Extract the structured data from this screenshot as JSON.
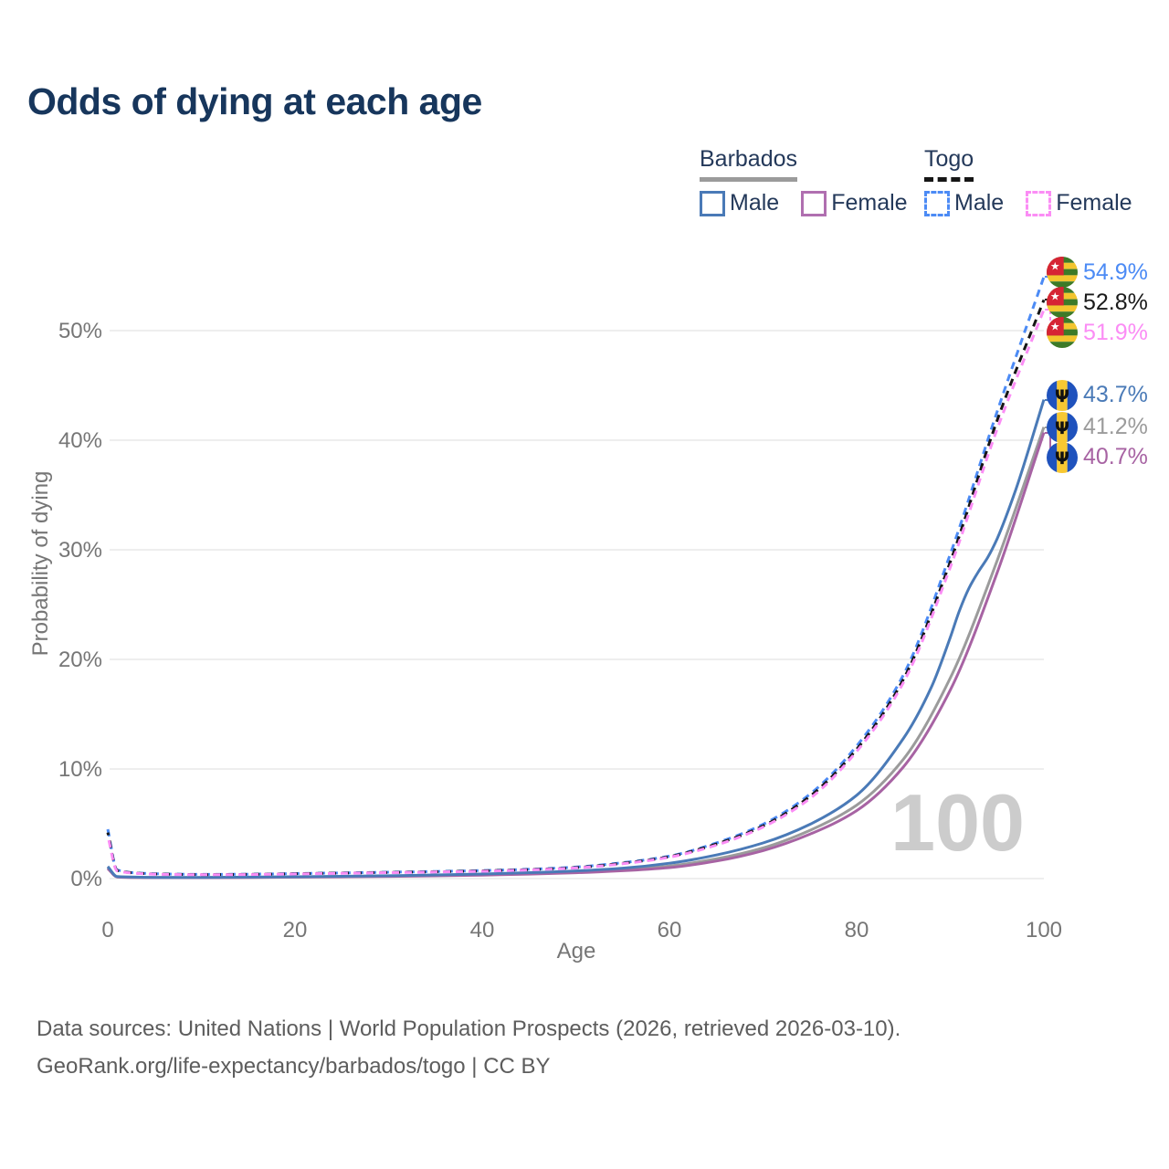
{
  "title": "Odds of dying at each age",
  "legend": {
    "groups": [
      {
        "label": "Barbados",
        "line_style": "solid",
        "entries": [
          {
            "label": "Male",
            "color": "#4a7ab7"
          },
          {
            "label": "Female",
            "color": "#b06fb0"
          }
        ]
      },
      {
        "label": "Togo",
        "line_style": "dashed",
        "entries": [
          {
            "label": "Male",
            "color": "#4c8bf5"
          },
          {
            "label": "Female",
            "color": "#fb8df5"
          }
        ]
      }
    ]
  },
  "axes": {
    "x": {
      "title": "Age",
      "ticks": [
        "0",
        "20",
        "40",
        "60",
        "80",
        "100"
      ],
      "tick_values": [
        0,
        20,
        40,
        60,
        80,
        100
      ],
      "range": [
        0,
        100
      ]
    },
    "y": {
      "title": "Probability of dying",
      "ticks": [
        "0%",
        "10%",
        "20%",
        "30%",
        "40%",
        "50%"
      ],
      "tick_values": [
        0,
        10,
        20,
        30,
        40,
        50
      ],
      "range": [
        0,
        57
      ]
    }
  },
  "watermark_age": "100",
  "chart_data": {
    "type": "line",
    "title": "Odds of dying at each age",
    "xlabel": "Age",
    "ylabel": "Probability of dying",
    "xlim": [
      0,
      100
    ],
    "ylim": [
      0,
      57
    ],
    "grid": "horizontal",
    "legend_position": "top-right",
    "series": [
      {
        "name": "Togo male",
        "country": "Togo",
        "sex": "male",
        "color": "#4c8bf5",
        "dash": true,
        "flag": "togo",
        "end_label": "54.9%",
        "points": [
          [
            0,
            4.5
          ],
          [
            1,
            0.78
          ],
          [
            3,
            0.52
          ],
          [
            5,
            0.44
          ],
          [
            10,
            0.38
          ],
          [
            15,
            0.4
          ],
          [
            20,
            0.46
          ],
          [
            25,
            0.52
          ],
          [
            30,
            0.58
          ],
          [
            35,
            0.65
          ],
          [
            40,
            0.73
          ],
          [
            45,
            0.85
          ],
          [
            50,
            1.05
          ],
          [
            55,
            1.45
          ],
          [
            60,
            2.05
          ],
          [
            65,
            3.25
          ],
          [
            70,
            4.95
          ],
          [
            75,
            7.7
          ],
          [
            80,
            12.1
          ],
          [
            85,
            18.6
          ],
          [
            90,
            29.6
          ],
          [
            95,
            42.6
          ],
          [
            100,
            54.9
          ]
        ]
      },
      {
        "name": "Togo both sexes",
        "country": "Togo",
        "sex": "both",
        "color": "#161616",
        "dash": true,
        "flag": "togo",
        "end_label": "52.8%",
        "points": [
          [
            0,
            4.2
          ],
          [
            1,
            0.74
          ],
          [
            3,
            0.5
          ],
          [
            5,
            0.42
          ],
          [
            10,
            0.36
          ],
          [
            15,
            0.38
          ],
          [
            20,
            0.44
          ],
          [
            25,
            0.5
          ],
          [
            30,
            0.56
          ],
          [
            35,
            0.62
          ],
          [
            40,
            0.7
          ],
          [
            45,
            0.82
          ],
          [
            50,
            1.0
          ],
          [
            55,
            1.4
          ],
          [
            60,
            2.0
          ],
          [
            65,
            3.15
          ],
          [
            70,
            4.8
          ],
          [
            75,
            7.5
          ],
          [
            80,
            11.8
          ],
          [
            85,
            18.2
          ],
          [
            90,
            28.9
          ],
          [
            95,
            41.8
          ],
          [
            100,
            52.8
          ]
        ]
      },
      {
        "name": "Togo female",
        "country": "Togo",
        "sex": "female",
        "color": "#fb8df5",
        "dash": true,
        "flag": "togo",
        "end_label": "51.9%",
        "points": [
          [
            0,
            3.9
          ],
          [
            1,
            0.7
          ],
          [
            3,
            0.48
          ],
          [
            5,
            0.4
          ],
          [
            10,
            0.35
          ],
          [
            15,
            0.37
          ],
          [
            20,
            0.42
          ],
          [
            25,
            0.48
          ],
          [
            30,
            0.54
          ],
          [
            35,
            0.6
          ],
          [
            40,
            0.67
          ],
          [
            45,
            0.79
          ],
          [
            50,
            0.97
          ],
          [
            55,
            1.35
          ],
          [
            60,
            1.95
          ],
          [
            65,
            3.05
          ],
          [
            70,
            4.7
          ],
          [
            75,
            7.3
          ],
          [
            80,
            11.6
          ],
          [
            85,
            17.9
          ],
          [
            90,
            28.4
          ],
          [
            95,
            41.0
          ],
          [
            100,
            51.9
          ]
        ]
      },
      {
        "name": "Barbados male",
        "country": "Barbados",
        "sex": "male",
        "color": "#4a7ab7",
        "dash": false,
        "flag": "barbados",
        "end_label": "43.7%",
        "points": [
          [
            0,
            1.1
          ],
          [
            1,
            0.18
          ],
          [
            3,
            0.13
          ],
          [
            5,
            0.11
          ],
          [
            10,
            0.1
          ],
          [
            15,
            0.13
          ],
          [
            20,
            0.17
          ],
          [
            25,
            0.21
          ],
          [
            30,
            0.26
          ],
          [
            35,
            0.33
          ],
          [
            40,
            0.42
          ],
          [
            45,
            0.54
          ],
          [
            50,
            0.7
          ],
          [
            55,
            0.95
          ],
          [
            60,
            1.4
          ],
          [
            65,
            2.15
          ],
          [
            70,
            3.25
          ],
          [
            75,
            4.95
          ],
          [
            80,
            7.6
          ],
          [
            85,
            12.8
          ],
          [
            88,
            17.5
          ],
          [
            90,
            22.0
          ],
          [
            91,
            24.5
          ],
          [
            92,
            26.5
          ],
          [
            93,
            28.0
          ],
          [
            94,
            29.3
          ],
          [
            95,
            31.0
          ],
          [
            97,
            35.5
          ],
          [
            100,
            43.7
          ]
        ]
      },
      {
        "name": "Barbados both sexes",
        "country": "Barbados",
        "sex": "both",
        "color": "#9b9b9b",
        "dash": false,
        "flag": "barbados",
        "end_label": "41.2%",
        "points": [
          [
            0,
            1.0
          ],
          [
            1,
            0.16
          ],
          [
            3,
            0.11
          ],
          [
            5,
            0.1
          ],
          [
            10,
            0.09
          ],
          [
            15,
            0.11
          ],
          [
            20,
            0.15
          ],
          [
            25,
            0.18
          ],
          [
            30,
            0.23
          ],
          [
            35,
            0.29
          ],
          [
            40,
            0.37
          ],
          [
            45,
            0.47
          ],
          [
            50,
            0.61
          ],
          [
            55,
            0.82
          ],
          [
            60,
            1.15
          ],
          [
            65,
            1.8
          ],
          [
            70,
            2.8
          ],
          [
            75,
            4.4
          ],
          [
            80,
            6.7
          ],
          [
            85,
            10.9
          ],
          [
            90,
            18.3
          ],
          [
            95,
            29.0
          ],
          [
            100,
            41.2
          ]
        ]
      },
      {
        "name": "Barbados female",
        "country": "Barbados",
        "sex": "female",
        "color": "#a763a3",
        "dash": false,
        "flag": "barbados",
        "end_label": "40.7%",
        "points": [
          [
            0,
            0.92
          ],
          [
            1,
            0.15
          ],
          [
            3,
            0.1
          ],
          [
            5,
            0.09
          ],
          [
            10,
            0.08
          ],
          [
            15,
            0.1
          ],
          [
            20,
            0.13
          ],
          [
            25,
            0.16
          ],
          [
            30,
            0.2
          ],
          [
            35,
            0.25
          ],
          [
            40,
            0.32
          ],
          [
            45,
            0.41
          ],
          [
            50,
            0.53
          ],
          [
            55,
            0.72
          ],
          [
            60,
            1.0
          ],
          [
            65,
            1.6
          ],
          [
            70,
            2.55
          ],
          [
            75,
            4.05
          ],
          [
            80,
            6.2
          ],
          [
            85,
            10.2
          ],
          [
            90,
            17.2
          ],
          [
            95,
            27.9
          ],
          [
            100,
            40.7
          ]
        ]
      }
    ],
    "annotation_text_colors": [
      "#4c8bf5",
      "#1a1a1a",
      "#fb8df5",
      "#4a7ab7",
      "#9b9b9b",
      "#a763a3"
    ]
  },
  "footer": {
    "line1": "Data sources: United Nations | World Population Prospects (2026, retrieved 2026-03-10).",
    "line2": "GeoRank.org/life-expectancy/barbados/togo | CC BY"
  },
  "colors": {
    "title": "#17365c",
    "legend_text": "#24395a",
    "axis_text": "#767676",
    "gridline": "#e9e9e9",
    "watermark": "#cccccc",
    "footer_text": "#5d5d5d",
    "background": "#ffffff"
  }
}
